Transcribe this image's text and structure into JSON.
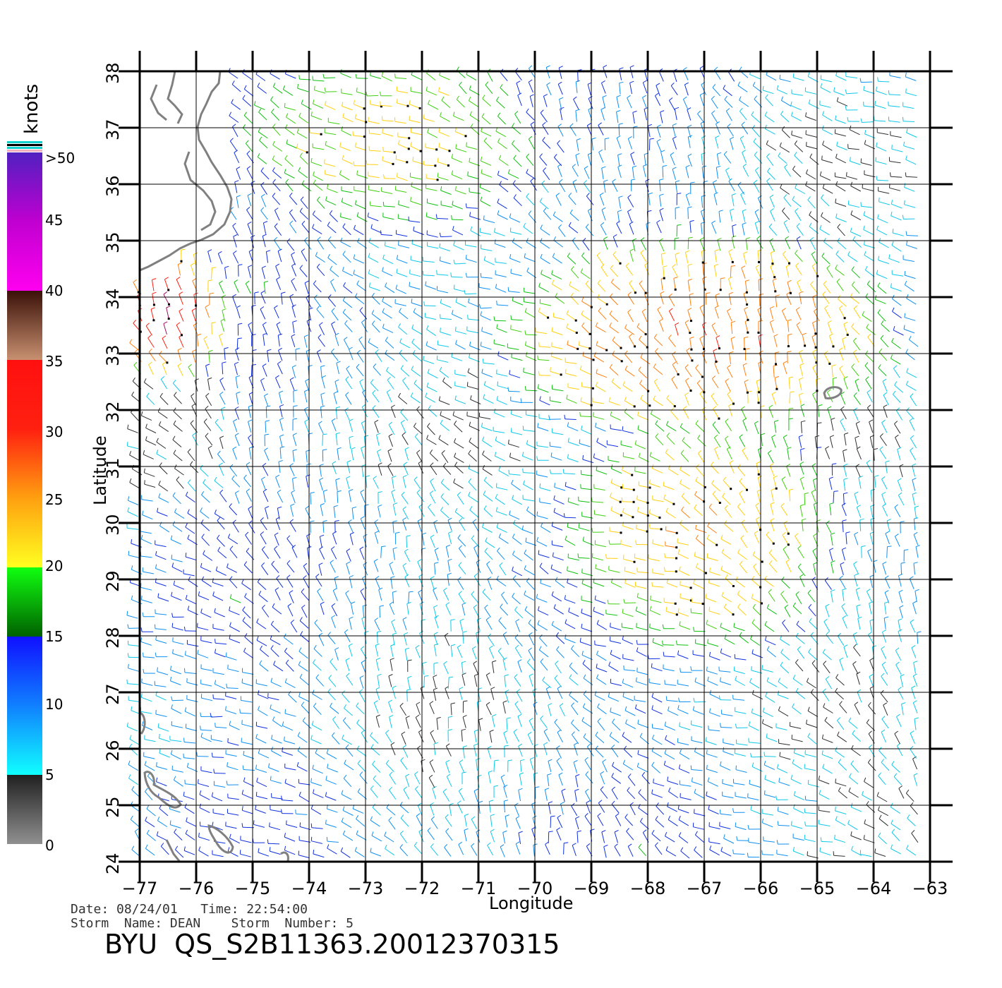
{
  "colorbar": {
    "title": "knots",
    "labels": [
      ">50",
      "45",
      "40",
      "35",
      "30",
      "25",
      "20",
      "15",
      "10",
      "5",
      "0"
    ],
    "colors": [
      "#5020c0",
      "#b000d0",
      "#ff00f0",
      "#4a1808",
      "#a06030",
      "#c88860",
      "#ff1010",
      "#ff6010",
      "#ffd010",
      "#10ff10",
      "#007010",
      "#1010ff",
      "#10a0ff",
      "#10f0ff",
      "#202020",
      "#909090"
    ]
  },
  "axes": {
    "xlabel": "Longitude",
    "ylabel": "Latitude",
    "xticks": [
      "−77",
      "−76",
      "−75",
      "−74",
      "−73",
      "−72",
      "−71",
      "−70",
      "−69",
      "−68",
      "−67",
      "−66",
      "−65",
      "−64",
      "−63"
    ],
    "yticks": [
      "24",
      "25",
      "26",
      "27",
      "28",
      "29",
      "30",
      "31",
      "32",
      "33",
      "34",
      "35",
      "36",
      "37",
      "38"
    ],
    "xlim": [
      -77,
      -63
    ],
    "ylim": [
      24,
      38
    ]
  },
  "info": {
    "line1": "Date: 08/24/01   Time: 22:54:00",
    "line2": "Storm  Name: DEAN    Storm  Number: 5",
    "title": "BYU  QS_S2B11363.20012370315"
  },
  "wind_regions": [
    {
      "lon": [
        -75,
        -70
      ],
      "lat": [
        35.5,
        38
      ],
      "speed_knots": 22
    },
    {
      "lon": [
        -70,
        -64
      ],
      "lat": [
        32,
        34.5
      ],
      "speed_knots": 30
    },
    {
      "lon": [
        -69,
        -65
      ],
      "lat": [
        28,
        31.5
      ],
      "speed_knots": 25
    },
    {
      "lon": [
        -77,
        -76
      ],
      "lat": [
        33,
        34.2
      ],
      "speed_knots": 35
    }
  ]
}
